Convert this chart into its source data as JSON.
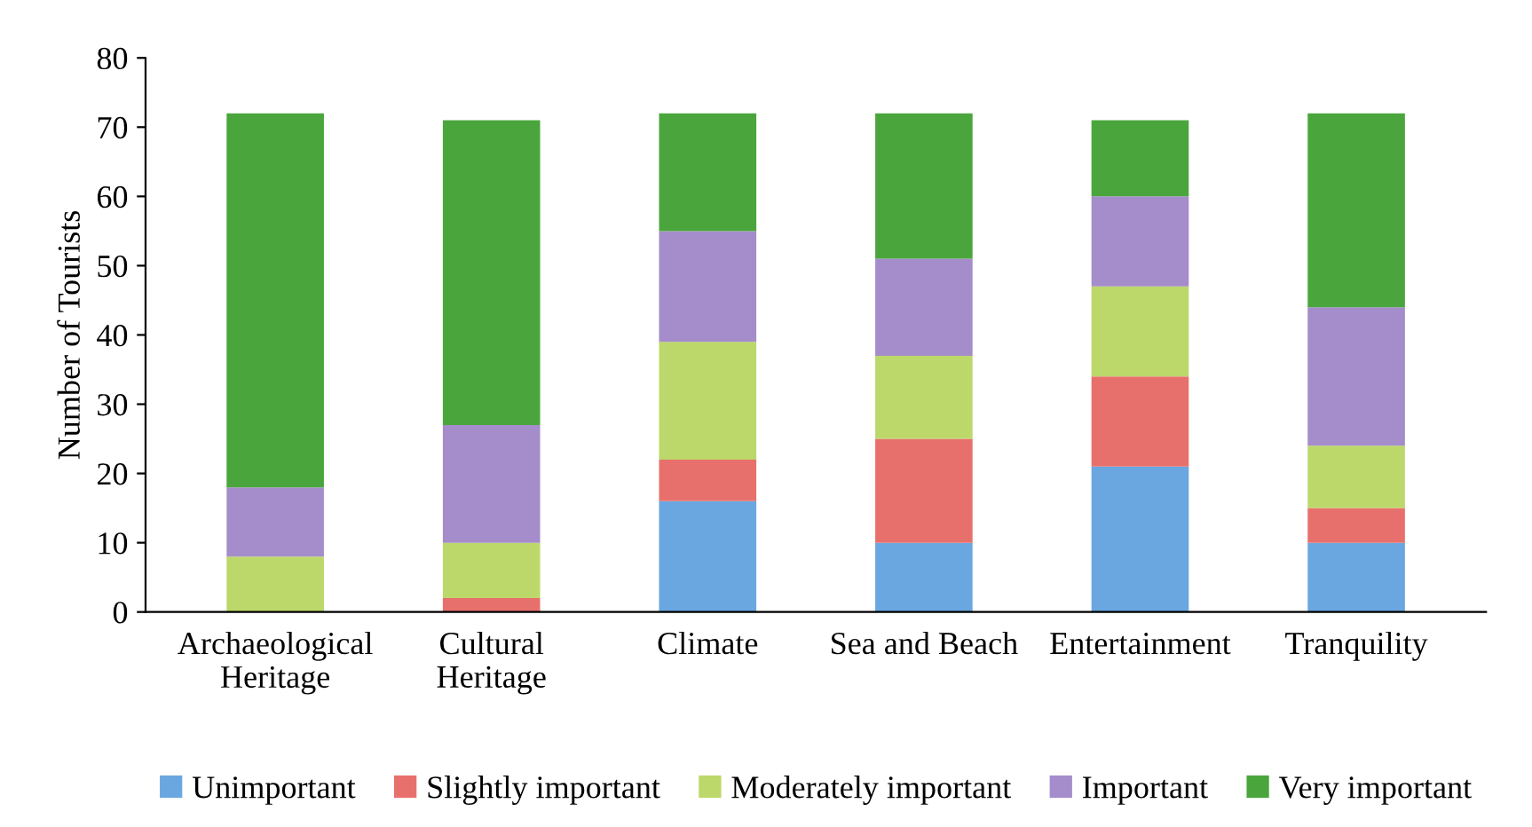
{
  "chart_data": {
    "type": "bar",
    "stacked": true,
    "ylabel": "Number of Tourists",
    "categories": [
      "Archaeological\nHeritage",
      "Cultural\nHeritage",
      "Climate",
      "Sea and Beach",
      "Entertainment",
      "Tranquility"
    ],
    "series": [
      {
        "name": "Unimportant",
        "color": "#6aa7e0",
        "values": [
          0,
          0,
          16,
          10,
          21,
          10
        ]
      },
      {
        "name": "Slightly important",
        "color": "#e8706c",
        "values": [
          0,
          2,
          6,
          15,
          13,
          5
        ]
      },
      {
        "name": "Moderately important",
        "color": "#bcd86a",
        "values": [
          8,
          8,
          17,
          12,
          13,
          9
        ]
      },
      {
        "name": "Important",
        "color": "#a58ccb",
        "values": [
          10,
          17,
          16,
          14,
          13,
          20
        ]
      },
      {
        "name": "Very important",
        "color": "#4aa63c",
        "values": [
          54,
          44,
          17,
          21,
          11,
          28
        ]
      }
    ],
    "ylim": [
      0,
      80
    ],
    "yticks": [
      0,
      10,
      20,
      30,
      40,
      50,
      60,
      70,
      80
    ],
    "grid": false,
    "legend": "bottom"
  }
}
